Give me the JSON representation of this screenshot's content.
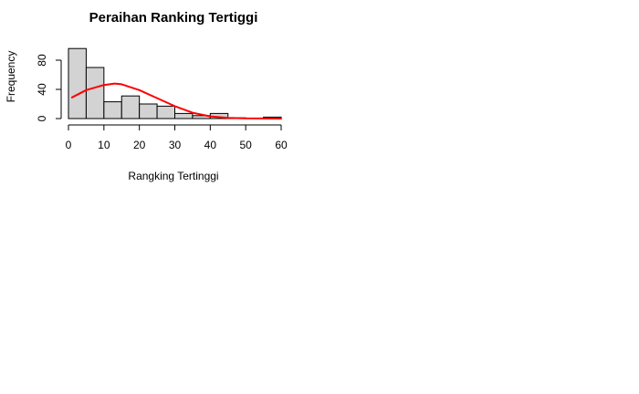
{
  "chart_data": {
    "type": "bar",
    "subtype": "histogram",
    "title": "Peraihan Ranking Tertiggi",
    "xlabel": "Rangking Tertinggi",
    "ylabel": "Frequency",
    "xlim": [
      0,
      60
    ],
    "ylim": [
      0,
      80
    ],
    "xticks": [
      0,
      10,
      20,
      30,
      40,
      50,
      60
    ],
    "yticks": [
      0,
      40,
      80
    ],
    "bin_width": 5,
    "bins": [
      {
        "from": 0,
        "to": 5,
        "count": 96
      },
      {
        "from": 5,
        "to": 10,
        "count": 70
      },
      {
        "from": 10,
        "to": 15,
        "count": 23
      },
      {
        "from": 15,
        "to": 20,
        "count": 31
      },
      {
        "from": 20,
        "to": 25,
        "count": 20
      },
      {
        "from": 25,
        "to": 30,
        "count": 17
      },
      {
        "from": 30,
        "to": 35,
        "count": 7
      },
      {
        "from": 35,
        "to": 40,
        "count": 4
      },
      {
        "from": 40,
        "to": 45,
        "count": 7
      },
      {
        "from": 45,
        "to": 50,
        "count": 1
      },
      {
        "from": 50,
        "to": 55,
        "count": 0
      },
      {
        "from": 55,
        "to": 60,
        "count": 2
      }
    ],
    "curve": {
      "x": [
        1,
        5,
        10,
        13,
        15,
        20,
        25,
        30,
        35,
        40,
        45,
        50,
        55,
        60
      ],
      "y": [
        29,
        39,
        46,
        48,
        47,
        39,
        28,
        17,
        8,
        3,
        1,
        0.3,
        0.1,
        0
      ]
    },
    "bar_fill": "#d3d3d3",
    "bar_stroke": "#000000",
    "curve_color": "#ff0000",
    "grid": false,
    "legend": "none"
  }
}
